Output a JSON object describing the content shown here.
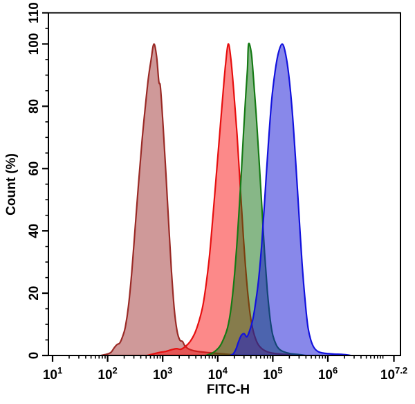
{
  "figure": {
    "background": "#ffffff",
    "axes_color": "#000000"
  },
  "chart_data": {
    "type": "area",
    "subtype": "flow-cytometry-histogram-overlay",
    "title": "",
    "xlabel": "FITC-H",
    "ylabel": "Count  (%)",
    "x_scale": "log10",
    "xlim_log": [
      1,
      7.32
    ],
    "ylim": [
      0,
      110
    ],
    "grid": false,
    "legend": "none",
    "x_ticks": [
      {
        "log": 1,
        "base": "10",
        "exp": "1"
      },
      {
        "log": 2,
        "base": "10",
        "exp": "2"
      },
      {
        "log": 3,
        "base": "10",
        "exp": "3"
      },
      {
        "log": 4,
        "base": "10",
        "exp": "4"
      },
      {
        "log": 5,
        "base": "10",
        "exp": "5"
      },
      {
        "log": 6,
        "base": "10",
        "exp": "6"
      },
      {
        "log": 7.2,
        "base": "10",
        "exp": "7.2"
      }
    ],
    "y_ticks": [
      {
        "value": 0,
        "label": "0"
      },
      {
        "value": 20,
        "label": "20"
      },
      {
        "value": 40,
        "label": "40"
      },
      {
        "value": 60,
        "label": "60"
      },
      {
        "value": 80,
        "label": "80"
      },
      {
        "value": 100,
        "label": "100"
      },
      {
        "value": 110,
        "label": "110"
      }
    ],
    "series": [
      {
        "name": "dark-red-population",
        "stroke": "#9a2a26",
        "fill": "#a03434",
        "fill_opacity": 0.5,
        "peak_value": 700,
        "peak_log": 2.84,
        "peak_count_pct": 100,
        "points_log_pct": [
          [
            1.88,
            0
          ],
          [
            1.98,
            0.4
          ],
          [
            2.06,
            1
          ],
          [
            2.12,
            2.5
          ],
          [
            2.17,
            3.5
          ],
          [
            2.22,
            4
          ],
          [
            2.27,
            6
          ],
          [
            2.32,
            9
          ],
          [
            2.38,
            16
          ],
          [
            2.44,
            27
          ],
          [
            2.5,
            41
          ],
          [
            2.56,
            55
          ],
          [
            2.62,
            68
          ],
          [
            2.68,
            79
          ],
          [
            2.74,
            89
          ],
          [
            2.79,
            95
          ],
          [
            2.84,
            100
          ],
          [
            2.89,
            96
          ],
          [
            2.93,
            88
          ],
          [
            2.96,
            86
          ],
          [
            3.01,
            73
          ],
          [
            3.06,
            58
          ],
          [
            3.11,
            42
          ],
          [
            3.16,
            27
          ],
          [
            3.21,
            15
          ],
          [
            3.26,
            8
          ],
          [
            3.31,
            5
          ],
          [
            3.36,
            4.5
          ],
          [
            3.4,
            3.2
          ],
          [
            3.46,
            2.2
          ],
          [
            3.55,
            1.6
          ],
          [
            3.68,
            1.2
          ],
          [
            3.85,
            0.9
          ],
          [
            4.05,
            0.6
          ],
          [
            4.25,
            0.3
          ],
          [
            4.42,
            0
          ]
        ]
      },
      {
        "name": "red-population",
        "stroke": "#e60f0f",
        "fill": "#fa1414",
        "fill_opacity": 0.5,
        "peak_value": 15000,
        "peak_log": 4.19,
        "peak_count_pct": 100,
        "points_log_pct": [
          [
            2.72,
            0
          ],
          [
            2.85,
            0.6
          ],
          [
            2.95,
            1
          ],
          [
            3.05,
            1.3
          ],
          [
            3.15,
            1.8
          ],
          [
            3.25,
            2.2
          ],
          [
            3.33,
            2
          ],
          [
            3.42,
            3
          ],
          [
            3.5,
            4.5
          ],
          [
            3.58,
            7
          ],
          [
            3.66,
            11
          ],
          [
            3.73,
            16
          ],
          [
            3.79,
            23
          ],
          [
            3.85,
            32
          ],
          [
            3.91,
            44
          ],
          [
            3.97,
            57
          ],
          [
            4.03,
            70
          ],
          [
            4.09,
            83
          ],
          [
            4.14,
            93
          ],
          [
            4.19,
            100
          ],
          [
            4.24,
            95
          ],
          [
            4.29,
            85
          ],
          [
            4.35,
            71
          ],
          [
            4.41,
            54
          ],
          [
            4.47,
            37
          ],
          [
            4.53,
            23
          ],
          [
            4.59,
            13
          ],
          [
            4.65,
            7.5
          ],
          [
            4.72,
            4
          ],
          [
            4.8,
            2.2
          ],
          [
            4.9,
            1.2
          ],
          [
            5.02,
            0.7
          ],
          [
            5.2,
            0.4
          ],
          [
            5.4,
            0.2
          ],
          [
            5.52,
            0
          ]
        ]
      },
      {
        "name": "green-population",
        "stroke": "#157a15",
        "fill": "#107010",
        "fill_opacity": 0.5,
        "peak_value": 36000,
        "peak_log": 4.56,
        "peak_count_pct": 100,
        "points_log_pct": [
          [
            3.78,
            0
          ],
          [
            3.88,
            0.6
          ],
          [
            3.96,
            1.5
          ],
          [
            4.04,
            3
          ],
          [
            4.11,
            5.5
          ],
          [
            4.18,
            9
          ],
          [
            4.24,
            15
          ],
          [
            4.3,
            25
          ],
          [
            4.36,
            39
          ],
          [
            4.42,
            56
          ],
          [
            4.47,
            72
          ],
          [
            4.51,
            84
          ],
          [
            4.54,
            92
          ],
          [
            4.56,
            100
          ],
          [
            4.61,
            97
          ],
          [
            4.65,
            89
          ],
          [
            4.7,
            77
          ],
          [
            4.75,
            63
          ],
          [
            4.8,
            48
          ],
          [
            4.85,
            33
          ],
          [
            4.9,
            21
          ],
          [
            4.95,
            12
          ],
          [
            5.0,
            6.5
          ],
          [
            5.06,
            3.5
          ],
          [
            5.12,
            2
          ],
          [
            5.2,
            1.2
          ],
          [
            5.32,
            0.6
          ],
          [
            5.48,
            0.3
          ],
          [
            5.6,
            0
          ]
        ]
      },
      {
        "name": "blue-population",
        "stroke": "#1212dd",
        "fill": "#1111d6",
        "fill_opacity": 0.5,
        "peak_value": 150000,
        "peak_log": 5.17,
        "peak_count_pct": 100,
        "points_log_pct": [
          [
            4.22,
            0
          ],
          [
            4.28,
            0.5
          ],
          [
            4.33,
            2
          ],
          [
            4.38,
            4.5
          ],
          [
            4.43,
            6.5
          ],
          [
            4.48,
            7
          ],
          [
            4.53,
            6
          ],
          [
            4.58,
            8
          ],
          [
            4.63,
            11
          ],
          [
            4.68,
            16
          ],
          [
            4.74,
            24
          ],
          [
            4.8,
            36
          ],
          [
            4.86,
            52
          ],
          [
            4.92,
            68
          ],
          [
            4.98,
            82
          ],
          [
            5.04,
            91
          ],
          [
            5.1,
            97
          ],
          [
            5.17,
            100
          ],
          [
            5.23,
            97
          ],
          [
            5.29,
            90
          ],
          [
            5.35,
            79
          ],
          [
            5.41,
            64
          ],
          [
            5.47,
            47
          ],
          [
            5.53,
            30
          ],
          [
            5.59,
            17
          ],
          [
            5.64,
            9
          ],
          [
            5.69,
            5
          ],
          [
            5.75,
            2.5
          ],
          [
            5.83,
            1.2
          ],
          [
            5.95,
            0.7
          ],
          [
            6.1,
            0.5
          ],
          [
            6.3,
            0.3
          ],
          [
            6.42,
            0
          ]
        ]
      }
    ]
  }
}
